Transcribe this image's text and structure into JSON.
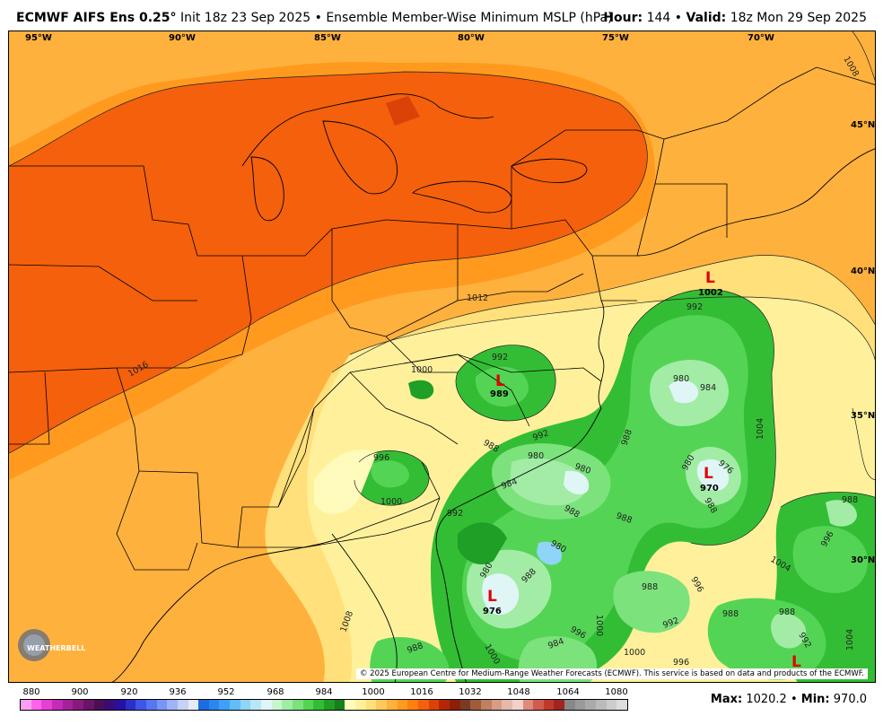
{
  "header": {
    "model": "ECMWF AIFS Ens 0.25",
    "degree": "°",
    "init": "Init 18z 23 Sep 2025",
    "bullet": "•",
    "product": "Ensemble Member-Wise Minimum MSLP (hPa)",
    "hour_label": "Hour:",
    "hour_value": "144",
    "valid_label": "Valid:",
    "valid_value": "18z Mon 29 Sep 2025"
  },
  "map": {
    "lon_labels": [
      "95°W",
      "90°W",
      "85°W",
      "80°W",
      "75°W",
      "70°W"
    ],
    "lat_labels": [
      "45°N",
      "40°N",
      "35°N",
      "30°N"
    ],
    "isobar_labels": [
      "1012",
      "1016",
      "1008",
      "1004",
      "1000",
      "996",
      "992",
      "988",
      "984",
      "980",
      "976"
    ],
    "lows": [
      {
        "symbol": "L",
        "value": "1002"
      },
      {
        "symbol": "L",
        "value": "989"
      },
      {
        "symbol": "L",
        "value": "970"
      },
      {
        "symbol": "L",
        "value": "976"
      },
      {
        "symbol": "L",
        "value": ""
      }
    ],
    "logo_text": "WEATHERBELL",
    "copyright": "© 2025 European Centre for Medium-Range Weather Forecasts (ECMWF). This service is based on data and products of the ECMWF."
  },
  "colorbar": {
    "ticks": [
      "880",
      "900",
      "920",
      "936",
      "952",
      "968",
      "984",
      "1000",
      "1016",
      "1032",
      "1048",
      "1064",
      "1080"
    ],
    "colors": [
      "#ff9ef5",
      "#ff62ec",
      "#e63fd6",
      "#c62ab8",
      "#a5209b",
      "#871a7f",
      "#6a1465",
      "#4b0f57",
      "#3a0c78",
      "#2611a0",
      "#2a2fc8",
      "#3f55e6",
      "#5876f0",
      "#7b95f5",
      "#9fb4f7",
      "#c4d1f9",
      "#e6ebf9",
      "#1c6ee0",
      "#2b86f0",
      "#3fa0f7",
      "#63bdf7",
      "#8fd5f7",
      "#b9e6f7",
      "#dff5f6",
      "#c8f5cf",
      "#a2eca6",
      "#7be27c",
      "#54d455",
      "#33bd35",
      "#1f9f25",
      "#157f1c",
      "#fffbbd",
      "#fff19b",
      "#ffe07a",
      "#ffc95b",
      "#ffb13d",
      "#ff9a1f",
      "#ff7f12",
      "#f4600c",
      "#da4208",
      "#b52607",
      "#8d1f06",
      "#7a3b26",
      "#a05b3a",
      "#bf7f62",
      "#d69c86",
      "#e5b9a9",
      "#efd2c8",
      "#e08a7d",
      "#d05c4f",
      "#c0392b",
      "#a02520",
      "#888888",
      "#9a9a9a",
      "#aaaaaa",
      "#bbbbbb",
      "#cccccc",
      "#dddddd"
    ]
  },
  "stats": {
    "max_label": "Max:",
    "max_value": "1020.2",
    "sep": "•",
    "min_label": "Min:",
    "min_value": "970.0"
  }
}
